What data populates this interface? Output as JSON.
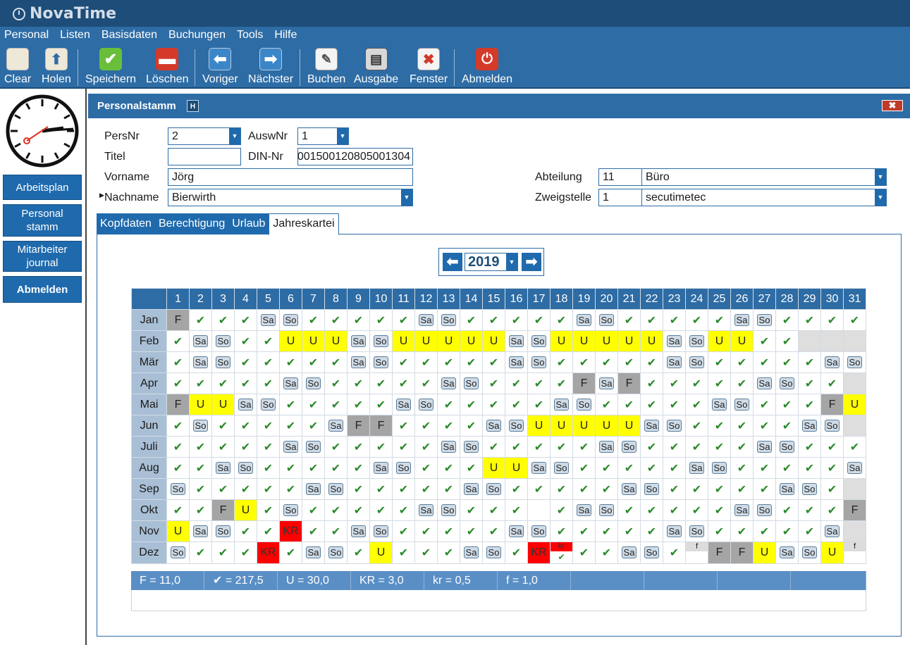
{
  "app": {
    "title": "NovaTime"
  },
  "menu": [
    "Personal",
    "Listen",
    "Basisdaten",
    "Buchungen",
    "Tools",
    "Hilfe"
  ],
  "toolbar": [
    {
      "label": "Clear",
      "icon": "clear-icon"
    },
    {
      "label": "Holen",
      "icon": "fetch-icon"
    },
    {
      "label": "Speichern",
      "icon": "save-icon"
    },
    {
      "label": "Löschen",
      "icon": "delete-icon"
    },
    {
      "label": "Voriger",
      "icon": "previous-icon"
    },
    {
      "label": "Nächster",
      "icon": "next-icon"
    },
    {
      "label": "Buchen",
      "icon": "book-icon"
    },
    {
      "label": "Ausgabe",
      "icon": "printer-icon"
    },
    {
      "label": "Fenster",
      "icon": "window-close-icon"
    },
    {
      "label": "Abmelden",
      "icon": "power-icon"
    }
  ],
  "sidebar": {
    "btn1": "Arbeitsplan",
    "btn2a": "Personal",
    "btn2b": "stamm",
    "btn3a": "Mitarbeiter",
    "btn3b": "journal",
    "btn4": "Abmelden"
  },
  "panel": {
    "title": "Personalstamm",
    "badge": "H",
    "close": "✖"
  },
  "form": {
    "persnr_label": "PersNr",
    "persnr": "2",
    "auswnr_label": "AuswNr",
    "auswnr": "1",
    "titel_label": "Titel",
    "titel": "",
    "dinnr_label": "DIN-Nr",
    "dinnr": "001500120805001304",
    "vorname_label": "Vorname",
    "vorname": "Jörg",
    "nachname_label": "Nachname",
    "nachname": "Bierwirth",
    "abteilung_label": "Abteilung",
    "abteilung_nr": "11",
    "abteilung": "Büro",
    "zweigstelle_label": "Zweigstelle",
    "zweigstelle_nr": "1",
    "zweigstelle": "secutimetec"
  },
  "tabs": [
    "Kopfdaten",
    "Berechtigung",
    "Urlaub",
    "Jahreskartei"
  ],
  "year": "2019",
  "calendar": {
    "days": [
      "1",
      "2",
      "3",
      "4",
      "5",
      "6",
      "7",
      "8",
      "9",
      "10",
      "11",
      "12",
      "13",
      "14",
      "15",
      "16",
      "17",
      "18",
      "19",
      "20",
      "21",
      "22",
      "23",
      "24",
      "25",
      "26",
      "27",
      "28",
      "29",
      "30",
      "31"
    ],
    "legend": {
      "ok": "✔",
      "Sa": "Sa",
      "So": "So",
      "F": "F",
      "U": "U",
      "KR": "KR",
      "kr": "kr",
      "f": "f"
    },
    "months": [
      {
        "name": "Jan",
        "codes": [
          "F",
          "ok",
          "ok",
          "ok",
          "Sa",
          "So",
          "ok",
          "ok",
          "ok",
          "ok",
          "ok",
          "Sa",
          "So",
          "ok",
          "ok",
          "ok",
          "ok",
          "ok",
          "Sa",
          "So",
          "ok",
          "ok",
          "ok",
          "ok",
          "ok",
          "Sa",
          "So",
          "ok",
          "ok",
          "ok",
          "ok"
        ]
      },
      {
        "name": "Feb",
        "codes": [
          "ok",
          "Sa",
          "So",
          "ok",
          "ok",
          "U",
          "U",
          "U",
          "Sa",
          "So",
          "U",
          "U",
          "U",
          "U",
          "U",
          "Sa",
          "So",
          "U",
          "U",
          "U",
          "U",
          "U",
          "Sa",
          "So",
          "U",
          "U",
          "ok",
          "ok",
          "na",
          "na",
          "na"
        ]
      },
      {
        "name": "Mär",
        "codes": [
          "ok",
          "Sa",
          "So",
          "ok",
          "ok",
          "ok",
          "ok",
          "ok",
          "Sa",
          "So",
          "ok",
          "ok",
          "ok",
          "ok",
          "ok",
          "Sa",
          "So",
          "ok",
          "ok",
          "ok",
          "ok",
          "ok",
          "Sa",
          "So",
          "ok",
          "ok",
          "ok",
          "ok",
          "ok",
          "Sa",
          "So"
        ]
      },
      {
        "name": "Apr",
        "codes": [
          "ok",
          "ok",
          "ok",
          "ok",
          "ok",
          "Sa",
          "So",
          "ok",
          "ok",
          "ok",
          "ok",
          "ok",
          "Sa",
          "So",
          "ok",
          "ok",
          "ok",
          "ok",
          "F",
          "Sa",
          "F",
          "ok",
          "ok",
          "ok",
          "ok",
          "ok",
          "Sa",
          "So",
          "ok",
          "ok",
          "na"
        ]
      },
      {
        "name": "Mai",
        "codes": [
          "F",
          "U",
          "U",
          "Sa",
          "So",
          "ok",
          "ok",
          "ok",
          "ok",
          "ok",
          "Sa",
          "So",
          "ok",
          "ok",
          "ok",
          "ok",
          "ok",
          "Sa",
          "So",
          "ok",
          "ok",
          "ok",
          "ok",
          "ok",
          "Sa",
          "So",
          "ok",
          "ok",
          "ok",
          "F",
          "U"
        ]
      },
      {
        "name": "Jun",
        "codes": [
          "ok",
          "So",
          "ok",
          "ok",
          "ok",
          "ok",
          "ok",
          "Sa",
          "F",
          "F",
          "ok",
          "ok",
          "ok",
          "ok",
          "Sa",
          "So",
          "U",
          "U",
          "U",
          "U",
          "U",
          "Sa",
          "So",
          "ok",
          "ok",
          "ok",
          "ok",
          "ok",
          "Sa",
          "So",
          "na"
        ]
      },
      {
        "name": "Juli",
        "codes": [
          "ok",
          "ok",
          "ok",
          "ok",
          "ok",
          "Sa",
          "So",
          "ok",
          "ok",
          "ok",
          "ok",
          "ok",
          "Sa",
          "So",
          "ok",
          "ok",
          "ok",
          "ok",
          "ok",
          "Sa",
          "So",
          "ok",
          "ok",
          "ok",
          "ok",
          "ok",
          "Sa",
          "So",
          "ok",
          "ok",
          "ok"
        ]
      },
      {
        "name": "Aug",
        "codes": [
          "ok",
          "ok",
          "Sa",
          "So",
          "ok",
          "ok",
          "ok",
          "ok",
          "ok",
          "Sa",
          "So",
          "ok",
          "ok",
          "ok",
          "U",
          "U",
          "Sa",
          "So",
          "ok",
          "ok",
          "ok",
          "ok",
          "ok",
          "Sa",
          "So",
          "ok",
          "ok",
          "ok",
          "ok",
          "ok",
          "Sa"
        ]
      },
      {
        "name": "Sep",
        "codes": [
          "So",
          "ok",
          "ok",
          "ok",
          "ok",
          "ok",
          "Sa",
          "So",
          "ok",
          "ok",
          "ok",
          "ok",
          "ok",
          "Sa",
          "So",
          "ok",
          "ok",
          "ok",
          "ok",
          "ok",
          "Sa",
          "So",
          "ok",
          "ok",
          "ok",
          "ok",
          "ok",
          "Sa",
          "So",
          "ok",
          "na"
        ]
      },
      {
        "name": "Okt",
        "codes": [
          "ok",
          "ok",
          "F",
          "U",
          "ok",
          "So",
          "ok",
          "ok",
          "ok",
          "ok",
          "ok",
          "Sa",
          "So",
          "ok",
          "ok",
          "ok",
          "empty",
          "ok",
          "Sa",
          "So",
          "ok",
          "ok",
          "ok",
          "ok",
          "ok",
          "Sa",
          "So",
          "ok",
          "ok",
          "ok",
          "F"
        ]
      },
      {
        "name": "Nov",
        "codes": [
          "U",
          "Sa",
          "So",
          "ok",
          "ok",
          "KR",
          "ok",
          "ok",
          "Sa",
          "So",
          "ok",
          "ok",
          "ok",
          "ok",
          "ok",
          "Sa",
          "So",
          "ok",
          "ok",
          "ok",
          "ok",
          "ok",
          "Sa",
          "So",
          "ok",
          "ok",
          "ok",
          "ok",
          "ok",
          "Sa",
          "na"
        ]
      },
      {
        "name": "Dez",
        "codes": [
          "So",
          "ok",
          "ok",
          "ok",
          "KR",
          "ok",
          "Sa",
          "So",
          "ok",
          "U",
          "ok",
          "ok",
          "ok",
          "Sa",
          "So",
          "ok",
          "KR",
          "kr",
          "ok",
          "ok",
          "Sa",
          "So",
          "ok",
          "f",
          "F",
          "F",
          "U",
          "Sa",
          "So",
          "U",
          "f"
        ]
      }
    ]
  },
  "summary": [
    "F  = 11,0",
    "✔   = 217,5",
    "U  = 30,0",
    "KR = 3,0",
    "kr  = 0,5",
    "f   = 1,0",
    "",
    "",
    "",
    ""
  ],
  "colors": {
    "titlebar": "#1d4d78",
    "accent": "#2e6ca5",
    "button": "#1f6aad",
    "holiday": "#a5a5a5",
    "vacation": "#ffff00",
    "sick": "#ff0000"
  }
}
